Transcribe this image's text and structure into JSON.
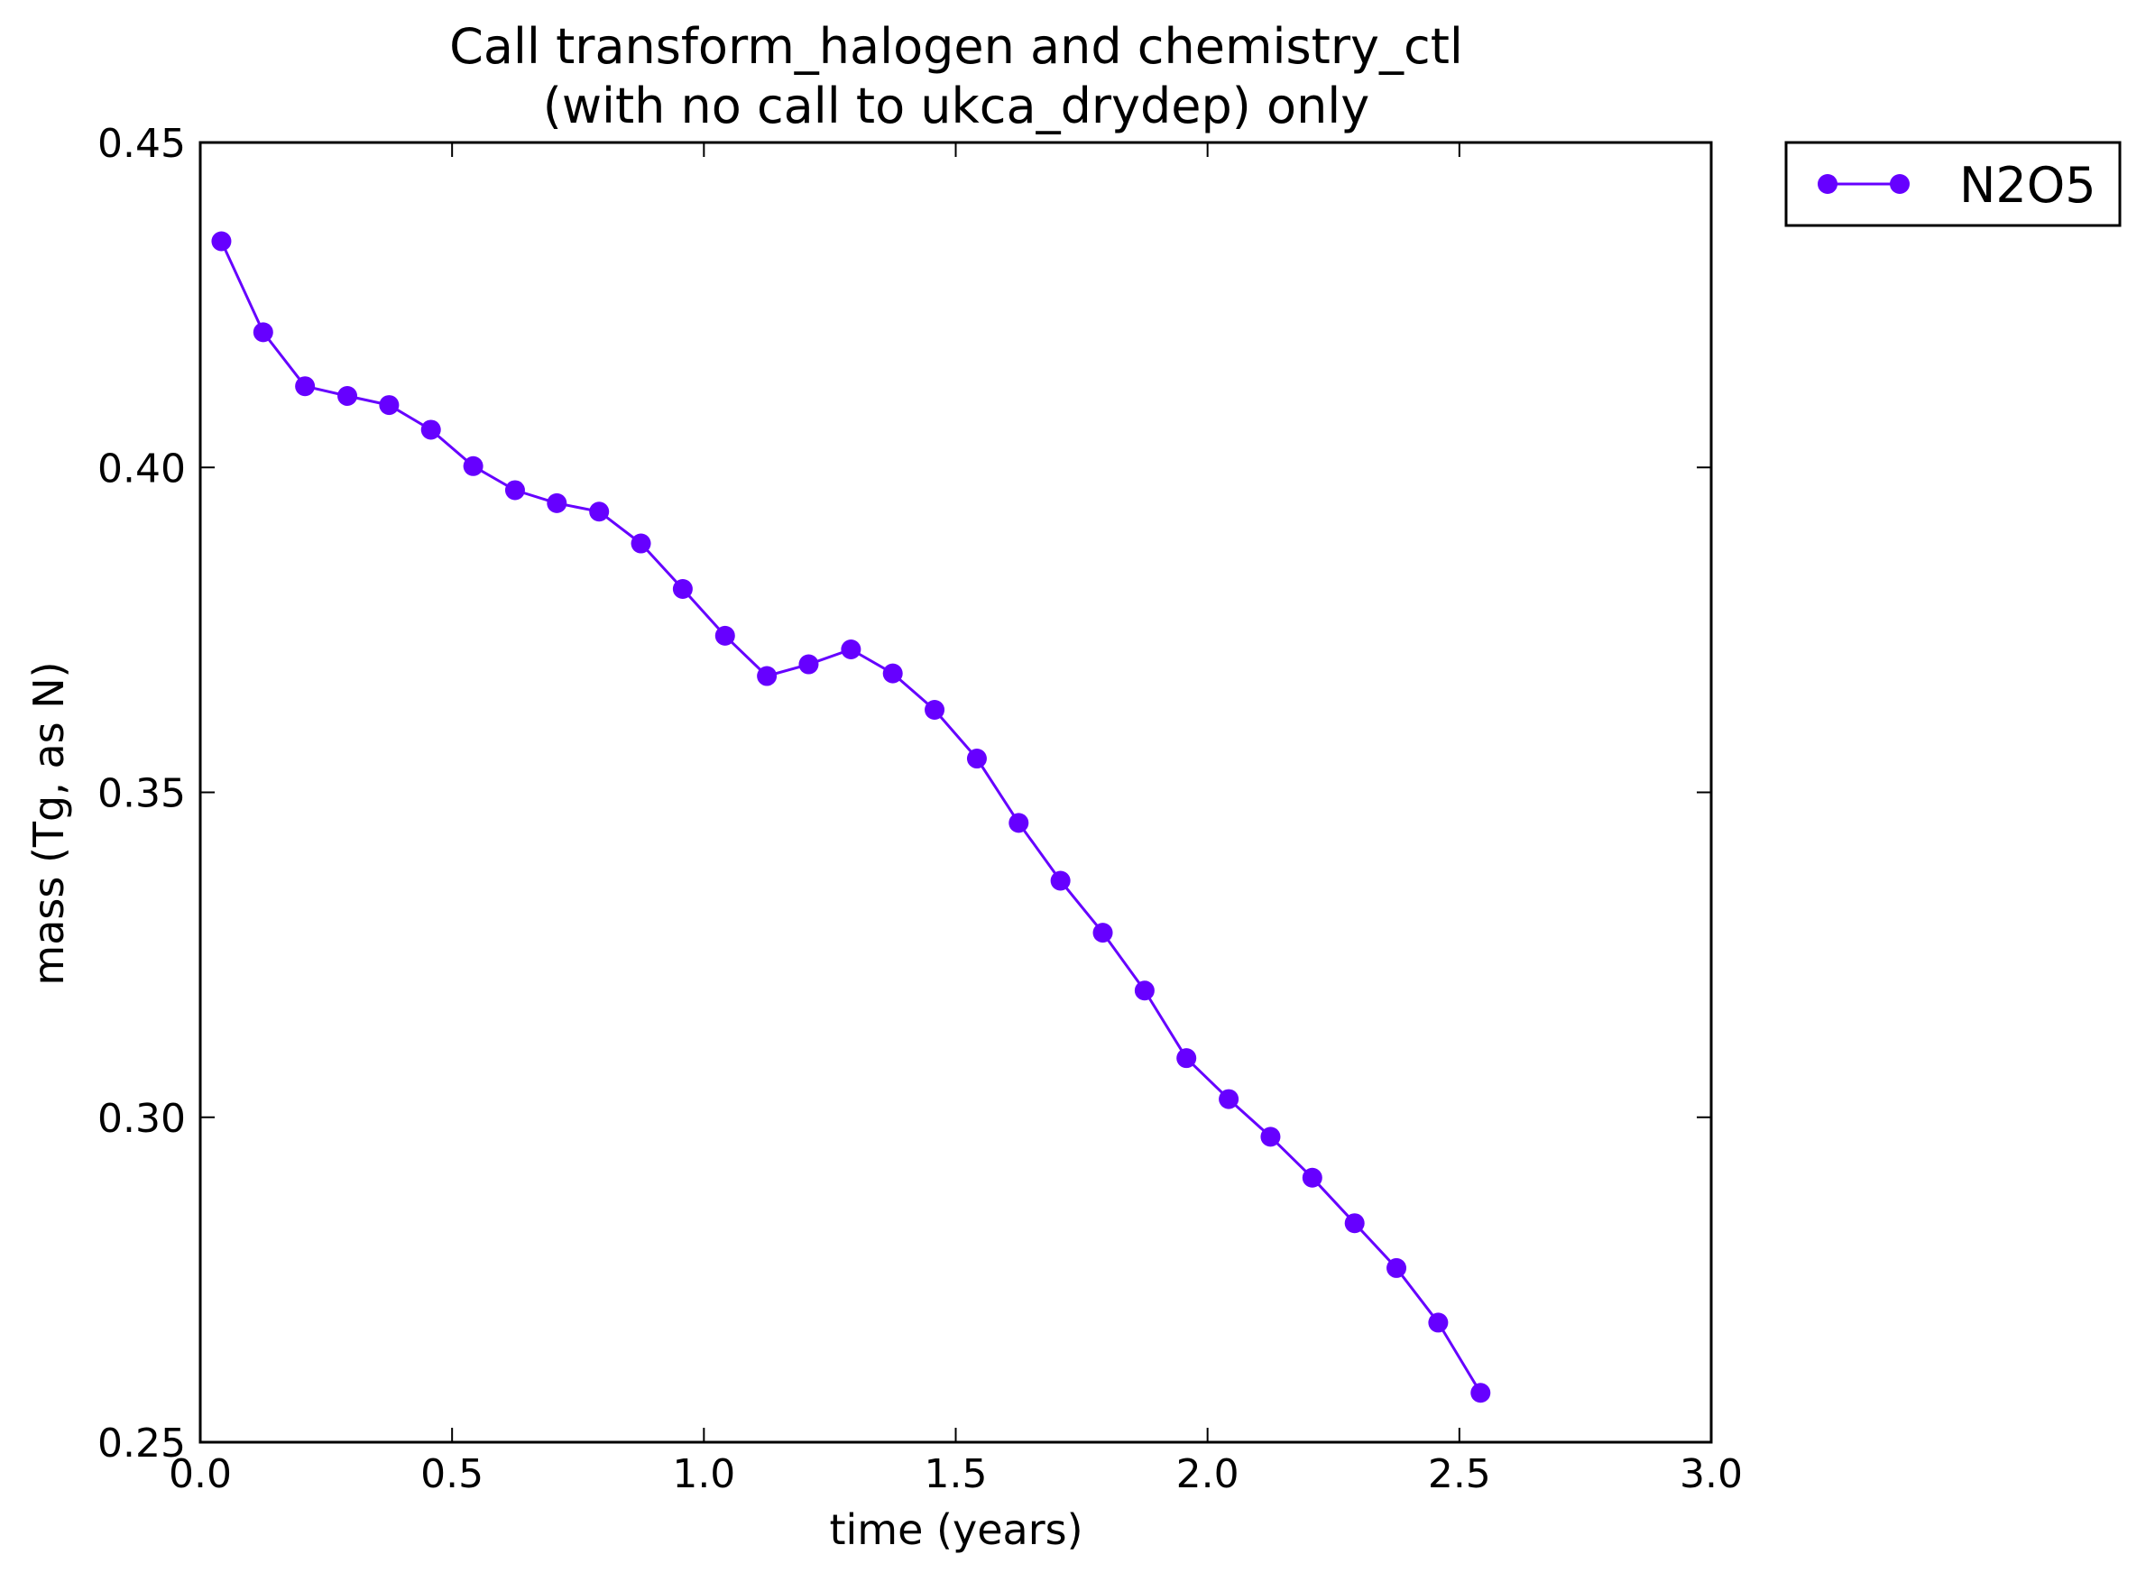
{
  "chart_data": {
    "type": "line",
    "title": [
      "Call transform_halogen and chemistry_ctl",
      "(with no call to ukca_drydep) only"
    ],
    "xlabel": "time (years)",
    "ylabel": "mass (Tg, as N)",
    "xlim": [
      0.0,
      3.0
    ],
    "ylim": [
      0.25,
      0.45
    ],
    "xticks": [
      "0.0",
      "0.5",
      "1.0",
      "1.5",
      "2.0",
      "2.5",
      "3.0"
    ],
    "yticks": [
      "0.25",
      "0.30",
      "0.35",
      "0.40",
      "0.45"
    ],
    "grid": false,
    "legend_position": "outside-top-right",
    "series": [
      {
        "name": "N2O5",
        "color": "#6600ff",
        "marker": "circle",
        "x": [
          0.042,
          0.125,
          0.208,
          0.292,
          0.375,
          0.458,
          0.542,
          0.625,
          0.708,
          0.792,
          0.875,
          0.958,
          1.042,
          1.125,
          1.208,
          1.292,
          1.375,
          1.458,
          1.542,
          1.625,
          1.708,
          1.792,
          1.875,
          1.958,
          2.042,
          2.125,
          2.208,
          2.292,
          2.375,
          2.458,
          2.542
        ],
        "y": [
          0.4348,
          0.4208,
          0.4125,
          0.411,
          0.4096,
          0.4058,
          0.4002,
          0.3965,
          0.3945,
          0.3932,
          0.3883,
          0.3813,
          0.3741,
          0.3679,
          0.3697,
          0.372,
          0.3683,
          0.3627,
          0.3552,
          0.3453,
          0.3364,
          0.3284,
          0.3195,
          0.3091,
          0.3028,
          0.297,
          0.2907,
          0.2837,
          0.2768,
          0.2684,
          0.2576
        ]
      }
    ]
  }
}
